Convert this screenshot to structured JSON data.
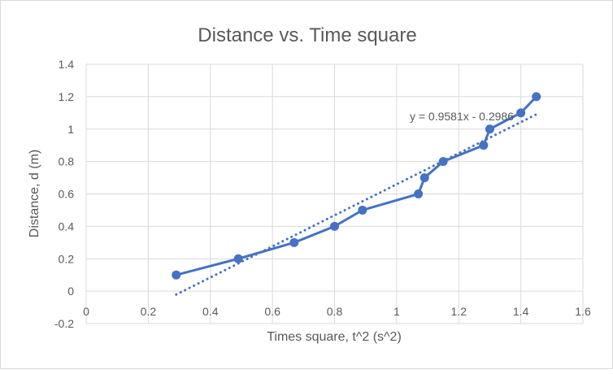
{
  "chart_data": {
    "type": "scatter",
    "title": "Distance vs. Time square",
    "xlabel": "Times square, t^2 (s^2)",
    "ylabel": "Distance, d (m)",
    "xlim": [
      0,
      1.6
    ],
    "ylim": [
      -0.2,
      1.4
    ],
    "x_ticks": [
      "0",
      "0.2",
      "0.4",
      "0.6",
      "0.8",
      "1",
      "1.2",
      "1.4",
      "1.6"
    ],
    "y_ticks": [
      "1.4",
      "1.2",
      "1",
      "0.8",
      "0.6",
      "0.4",
      "0.2",
      "0",
      "-0.2"
    ],
    "grid": true,
    "legend": "none",
    "series": [
      {
        "name": "Distance",
        "style": "line-with-markers",
        "color": "#4472C4",
        "x": [
          0.29,
          0.49,
          0.67,
          0.8,
          0.89,
          1.07,
          1.09,
          1.15,
          1.28,
          1.3,
          1.4,
          1.45
        ],
        "y": [
          0.1,
          0.2,
          0.3,
          0.4,
          0.5,
          0.6,
          0.7,
          0.8,
          0.9,
          1.0,
          1.1,
          1.2
        ]
      }
    ],
    "trendline": {
      "type": "linear",
      "style": "dotted",
      "color": "#4472C4",
      "slope": 0.9581,
      "intercept": -0.2986,
      "x_range": [
        0.29,
        1.45
      ],
      "equation_label": "y = 0.9581x - 0.2986"
    }
  }
}
